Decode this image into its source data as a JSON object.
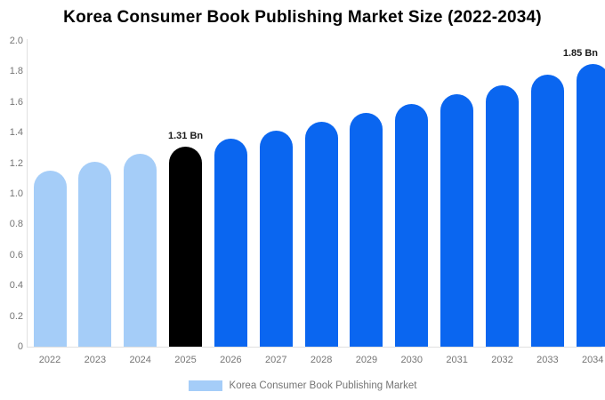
{
  "title": "Korea Consumer Book Publishing Market Size (2022-2034)",
  "chart_data": {
    "type": "bar",
    "title": "Korea Consumer Book Publishing Market Size (2022-2034)",
    "categories": [
      "2022",
      "2023",
      "2024",
      "2025",
      "2026",
      "2027",
      "2028",
      "2029",
      "2030",
      "2031",
      "2032",
      "2033",
      "2034"
    ],
    "values": [
      1.15,
      1.21,
      1.26,
      1.31,
      1.36,
      1.41,
      1.47,
      1.53,
      1.59,
      1.65,
      1.71,
      1.78,
      1.85
    ],
    "unit": "Bn",
    "series_name": "Korea Consumer Book Publishing Market",
    "ylim": [
      0,
      2.0
    ],
    "ytick_labels": [
      "0",
      "0.2",
      "0.4",
      "0.6",
      "0.8",
      "1.0",
      "1.2",
      "1.4",
      "1.6",
      "1.8",
      "2.0"
    ],
    "grid": false,
    "legend_position": "bottom",
    "bar_colors": [
      "#a5cdf8",
      "#a5cdf8",
      "#a5cdf8",
      "#000000",
      "#0a66f0",
      "#0a66f0",
      "#0a66f0",
      "#0a66f0",
      "#0a66f0",
      "#0a66f0",
      "#0a66f0",
      "#0a66f0",
      "#0a66f0"
    ],
    "annotations": [
      {
        "category": "2025",
        "text": "1.31 Bn"
      },
      {
        "category": "2034",
        "text": "1.85 Bn"
      }
    ]
  },
  "legend": {
    "label": "Korea Consumer Book Publishing Market",
    "swatch_color": "#a5cdf8"
  },
  "colors": {
    "past_bar": "#a5cdf8",
    "highlight_bar": "#000000",
    "forecast_bar": "#0a66f0",
    "title_text": "#000000",
    "tick_text": "#757575",
    "annotation_text": "#1a1a1a",
    "axis_line": "#e0e0e0",
    "background": "#ffffff"
  }
}
